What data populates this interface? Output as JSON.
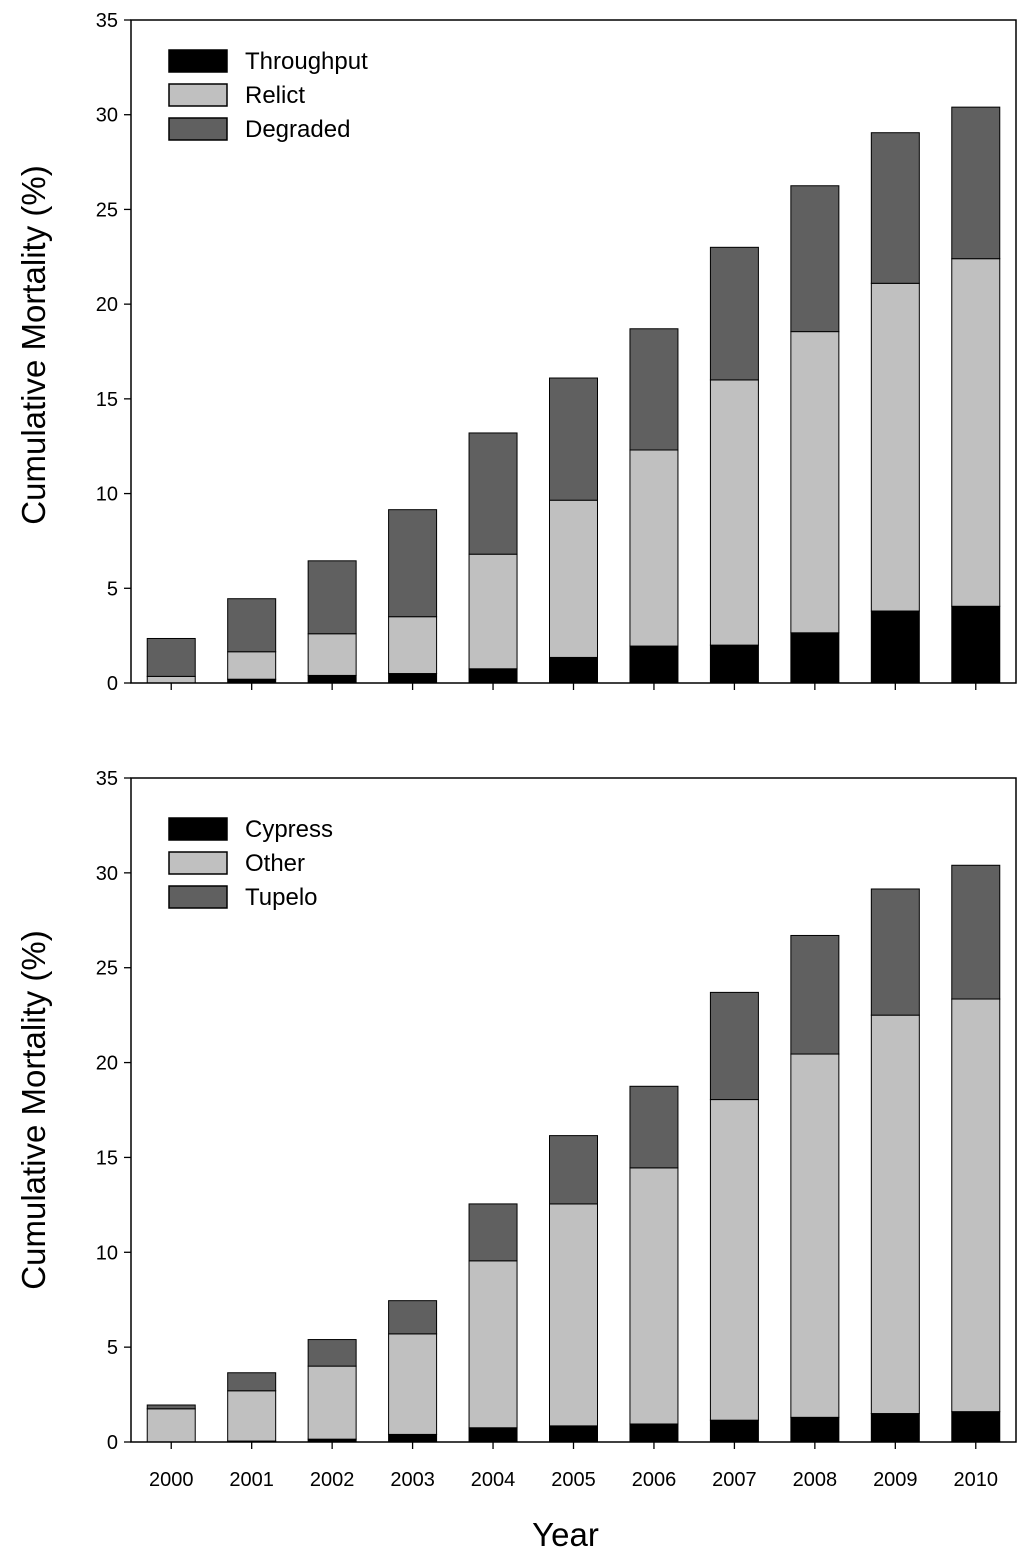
{
  "chart_data": [
    {
      "type": "bar",
      "stacked": true,
      "categories": [
        "2000",
        "2001",
        "2002",
        "2003",
        "2004",
        "2005",
        "2006",
        "2007",
        "2008",
        "2009",
        "2010"
      ],
      "ylabel": "Cumulative Mortality (%)",
      "xlabel": "",
      "ylim": [
        0,
        35
      ],
      "yticks": [
        0,
        5,
        10,
        15,
        20,
        25,
        30,
        35
      ],
      "legend_position": "top-left",
      "series": [
        {
          "name": "Throughput",
          "color": "#000000",
          "values": [
            0.0,
            0.2,
            0.4,
            0.5,
            0.75,
            1.35,
            1.95,
            2.0,
            2.65,
            3.8,
            4.05
          ]
        },
        {
          "name": "Relict",
          "color": "#c0c0c0",
          "values": [
            0.35,
            1.45,
            2.2,
            3.0,
            6.05,
            8.3,
            10.35,
            14.0,
            15.9,
            17.3,
            18.35
          ]
        },
        {
          "name": "Degraded",
          "color": "#606060",
          "values": [
            2.0,
            2.8,
            3.85,
            5.65,
            6.4,
            6.45,
            6.4,
            7.0,
            7.7,
            7.95,
            8.0
          ]
        }
      ]
    },
    {
      "type": "bar",
      "stacked": true,
      "categories": [
        "2000",
        "2001",
        "2002",
        "2003",
        "2004",
        "2005",
        "2006",
        "2007",
        "2008",
        "2009",
        "2010"
      ],
      "ylabel": "Cumulative Mortality (%)",
      "xlabel": "Year",
      "ylim": [
        0,
        35
      ],
      "yticks": [
        0,
        5,
        10,
        15,
        20,
        25,
        30,
        35
      ],
      "legend_position": "top-left",
      "series": [
        {
          "name": "Cypress",
          "color": "#000000",
          "values": [
            0.0,
            0.05,
            0.15,
            0.4,
            0.75,
            0.85,
            0.95,
            1.15,
            1.3,
            1.5,
            1.6
          ]
        },
        {
          "name": "Other",
          "color": "#c0c0c0",
          "values": [
            1.75,
            2.65,
            3.85,
            5.3,
            8.8,
            11.7,
            13.5,
            16.9,
            19.15,
            21.0,
            21.75
          ]
        },
        {
          "name": "Tupelo",
          "color": "#606060",
          "values": [
            0.2,
            0.95,
            1.4,
            1.75,
            3.0,
            3.6,
            4.3,
            5.65,
            6.25,
            6.65,
            7.05
          ]
        }
      ]
    }
  ]
}
